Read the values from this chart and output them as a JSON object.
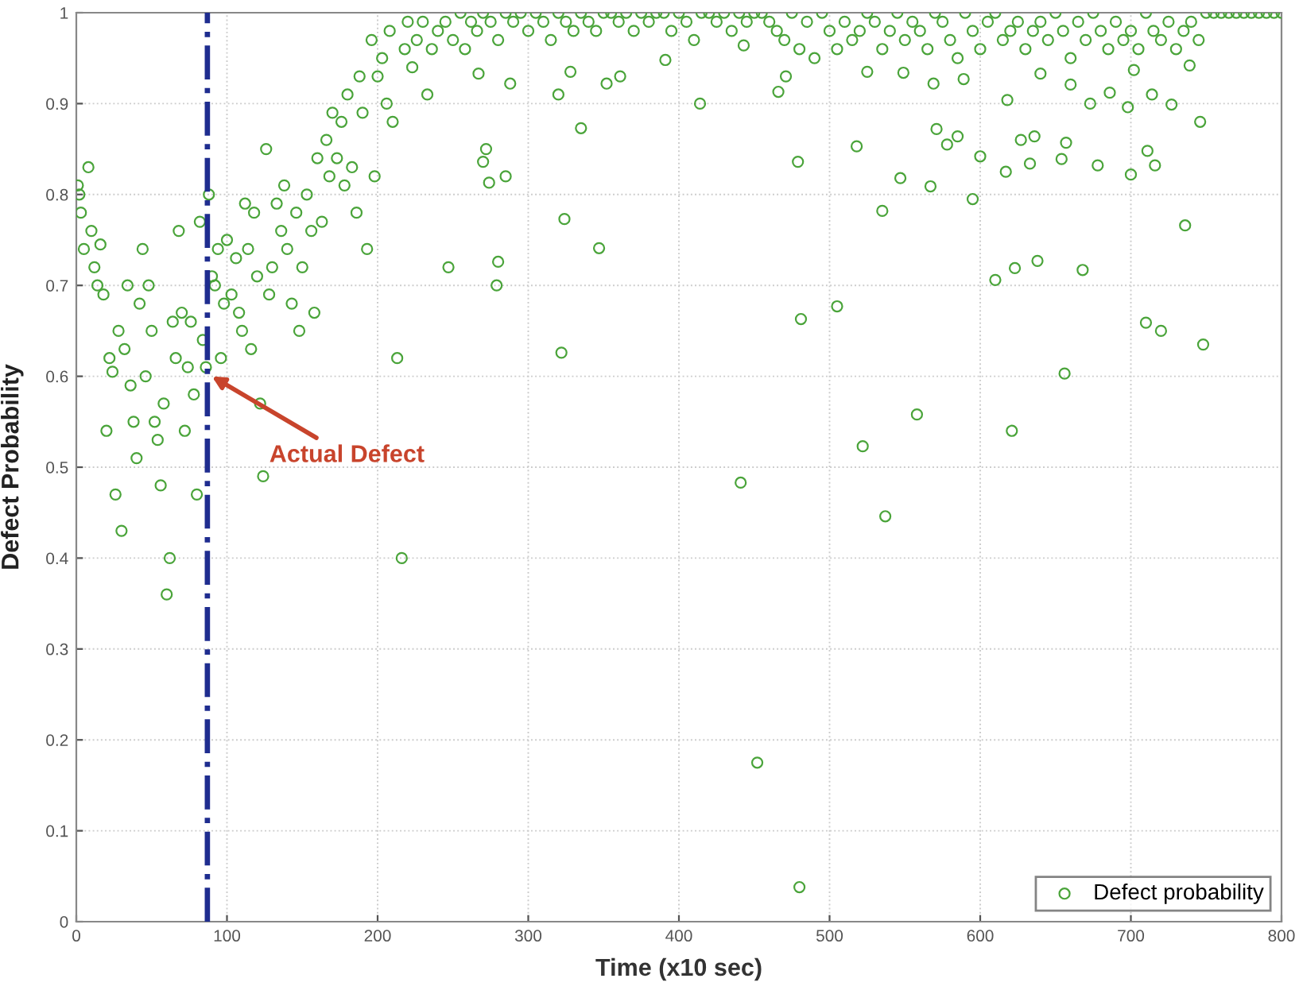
{
  "chart_data": {
    "type": "scatter",
    "xlabel": "Time (x10 sec)",
    "ylabel": "Defect Probability",
    "xlim": [
      0,
      800
    ],
    "ylim": [
      0,
      1
    ],
    "xticks": [
      0,
      100,
      200,
      300,
      400,
      500,
      600,
      700,
      800
    ],
    "yticks": [
      0,
      0.1,
      0.2,
      0.3,
      0.4,
      0.5,
      0.6,
      0.7,
      0.8,
      0.9,
      1
    ],
    "grid": true,
    "legend": "bottom right",
    "marker": "circle",
    "series": [
      {
        "name": "Defect probability",
        "color": "#4aa43a",
        "x": [
          1,
          2,
          3,
          5,
          8,
          10,
          12,
          14,
          16,
          18,
          20,
          22,
          24,
          26,
          28,
          30,
          32,
          34,
          36,
          38,
          40,
          42,
          44,
          46,
          48,
          50,
          52,
          54,
          56,
          58,
          60,
          62,
          64,
          66,
          68,
          70,
          72,
          74,
          76,
          78,
          80,
          82,
          84,
          86,
          88,
          90,
          92,
          94,
          96,
          98,
          100,
          103,
          106,
          108,
          110,
          112,
          114,
          116,
          118,
          120,
          122,
          124,
          126,
          128,
          130,
          133,
          136,
          138,
          140,
          143,
          146,
          148,
          150,
          153,
          156,
          158,
          160,
          163,
          166,
          168,
          170,
          173,
          176,
          178,
          180,
          183,
          186,
          188,
          190,
          193,
          196,
          198,
          200,
          203,
          206,
          208,
          210,
          213,
          216,
          218,
          220,
          223,
          226,
          230,
          233,
          236,
          322,
          274,
          285,
          272,
          270,
          247,
          280,
          279,
          324,
          347,
          335,
          320,
          414,
          479,
          481,
          505,
          518,
          535,
          522,
          558,
          621,
          656,
          595,
          547,
          567,
          610,
          623,
          638,
          668,
          710,
          720,
          748,
          736,
          654,
          633,
          678,
          700,
          716,
          617,
          600,
          578,
          585,
          571,
          627,
          636,
          657,
          711,
          746,
          466,
          471,
          569,
          618,
          673,
          698,
          727,
          714,
          660,
          686,
          589,
          525,
          549,
          640,
          702,
          739,
          288,
          267,
          352,
          361,
          328,
          391,
          443,
          441,
          452,
          480,
          537,
          240,
          245,
          250,
          255,
          258,
          262,
          266,
          270,
          275,
          280,
          285,
          290,
          295,
          300,
          305,
          310,
          315,
          320,
          325,
          330,
          335,
          340,
          345,
          350,
          355,
          360,
          365,
          370,
          375,
          380,
          385,
          390,
          395,
          400,
          405,
          410,
          415,
          420,
          425,
          430,
          435,
          440,
          445,
          450,
          455,
          460,
          465,
          470,
          475,
          480,
          485,
          490,
          495,
          500,
          505,
          510,
          515,
          520,
          525,
          530,
          535,
          540,
          545,
          550,
          555,
          560,
          565,
          570,
          575,
          580,
          585,
          590,
          595,
          600,
          605,
          610,
          615,
          620,
          625,
          630,
          635,
          640,
          645,
          650,
          655,
          660,
          665,
          670,
          675,
          680,
          685,
          690,
          695,
          700,
          705,
          710,
          715,
          720,
          725,
          730,
          735,
          740,
          745,
          750,
          755,
          760,
          765,
          770,
          775,
          780,
          785,
          790,
          795,
          800
        ],
        "values": [
          0.81,
          0.8,
          0.78,
          0.74,
          0.83,
          0.76,
          0.72,
          0.7,
          0.745,
          0.69,
          0.54,
          0.62,
          0.605,
          0.47,
          0.65,
          0.43,
          0.63,
          0.7,
          0.59,
          0.55,
          0.51,
          0.68,
          0.74,
          0.6,
          0.7,
          0.65,
          0.55,
          0.53,
          0.48,
          0.57,
          0.36,
          0.4,
          0.66,
          0.62,
          0.76,
          0.67,
          0.54,
          0.61,
          0.66,
          0.58,
          0.47,
          0.77,
          0.64,
          0.61,
          0.8,
          0.71,
          0.7,
          0.74,
          0.62,
          0.68,
          0.75,
          0.69,
          0.73,
          0.67,
          0.65,
          0.79,
          0.74,
          0.63,
          0.78,
          0.71,
          0.57,
          0.49,
          0.85,
          0.69,
          0.72,
          0.79,
          0.76,
          0.81,
          0.74,
          0.68,
          0.78,
          0.65,
          0.72,
          0.8,
          0.76,
          0.67,
          0.84,
          0.77,
          0.86,
          0.82,
          0.89,
          0.84,
          0.88,
          0.81,
          0.91,
          0.83,
          0.78,
          0.93,
          0.89,
          0.74,
          0.97,
          0.82,
          0.93,
          0.95,
          0.9,
          0.98,
          0.88,
          0.62,
          0.4,
          0.96,
          0.99,
          0.94,
          0.97,
          0.99,
          0.91,
          0.96,
          0.626,
          0.813,
          0.82,
          0.85,
          0.836,
          0.72,
          0.726,
          0.7,
          0.773,
          0.741,
          0.873,
          0.91,
          0.9,
          0.836,
          0.663,
          0.677,
          0.853,
          0.782,
          0.523,
          0.558,
          0.54,
          0.603,
          0.795,
          0.818,
          0.809,
          0.706,
          0.719,
          0.727,
          0.717,
          0.659,
          0.65,
          0.635,
          0.766,
          0.839,
          0.834,
          0.832,
          0.822,
          0.832,
          0.825,
          0.842,
          0.855,
          0.864,
          0.872,
          0.86,
          0.864,
          0.857,
          0.848,
          0.88,
          0.913,
          0.93,
          0.922,
          0.904,
          0.9,
          0.896,
          0.899,
          0.91,
          0.921,
          0.912,
          0.927,
          0.935,
          0.934,
          0.933,
          0.937,
          0.942,
          0.922,
          0.933,
          0.922,
          0.93,
          0.935,
          0.948,
          0.964,
          0.483,
          0.175,
          0.038,
          0.446,
          0.98,
          0.99,
          0.97,
          1.0,
          0.96,
          0.99,
          0.98,
          1.0,
          0.99,
          0.97,
          1.0,
          0.99,
          1.0,
          0.98,
          1.0,
          0.99,
          0.97,
          1.0,
          0.99,
          0.98,
          1.0,
          0.99,
          0.98,
          1.0,
          1.0,
          0.99,
          1.0,
          0.98,
          1.0,
          0.99,
          1.0,
          1.0,
          0.98,
          1.0,
          0.99,
          0.97,
          1.0,
          1.0,
          0.99,
          1.0,
          0.98,
          1.0,
          0.99,
          1.0,
          1.0,
          0.99,
          0.98,
          0.97,
          1.0,
          0.96,
          0.99,
          0.95,
          1.0,
          0.98,
          0.96,
          0.99,
          0.97,
          0.98,
          1.0,
          0.99,
          0.96,
          0.98,
          1.0,
          0.97,
          0.99,
          0.98,
          0.96,
          1.0,
          0.99,
          0.97,
          0.95,
          1.0,
          0.98,
          0.96,
          0.99,
          1.0,
          0.97,
          0.98,
          0.99,
          0.96,
          0.98,
          0.99,
          0.97,
          1.0,
          0.98,
          0.95,
          0.99,
          0.97,
          1.0,
          0.98,
          0.96,
          0.99,
          0.97,
          0.98,
          0.96,
          1.0,
          0.98,
          0.97,
          0.99,
          0.96,
          0.98,
          0.99,
          0.97,
          1.0,
          1.0,
          1.0,
          1.0,
          1.0,
          1.0,
          1.0,
          1.0,
          1.0,
          1.0,
          1.0
        ]
      }
    ],
    "ref_lines": [
      {
        "axis": "x",
        "value": 87,
        "color": "#1f2d8f",
        "line_style": "dashdot"
      }
    ],
    "annotations": [
      {
        "text": "Actual Defect",
        "x": 90,
        "y": 0.6
      }
    ]
  }
}
